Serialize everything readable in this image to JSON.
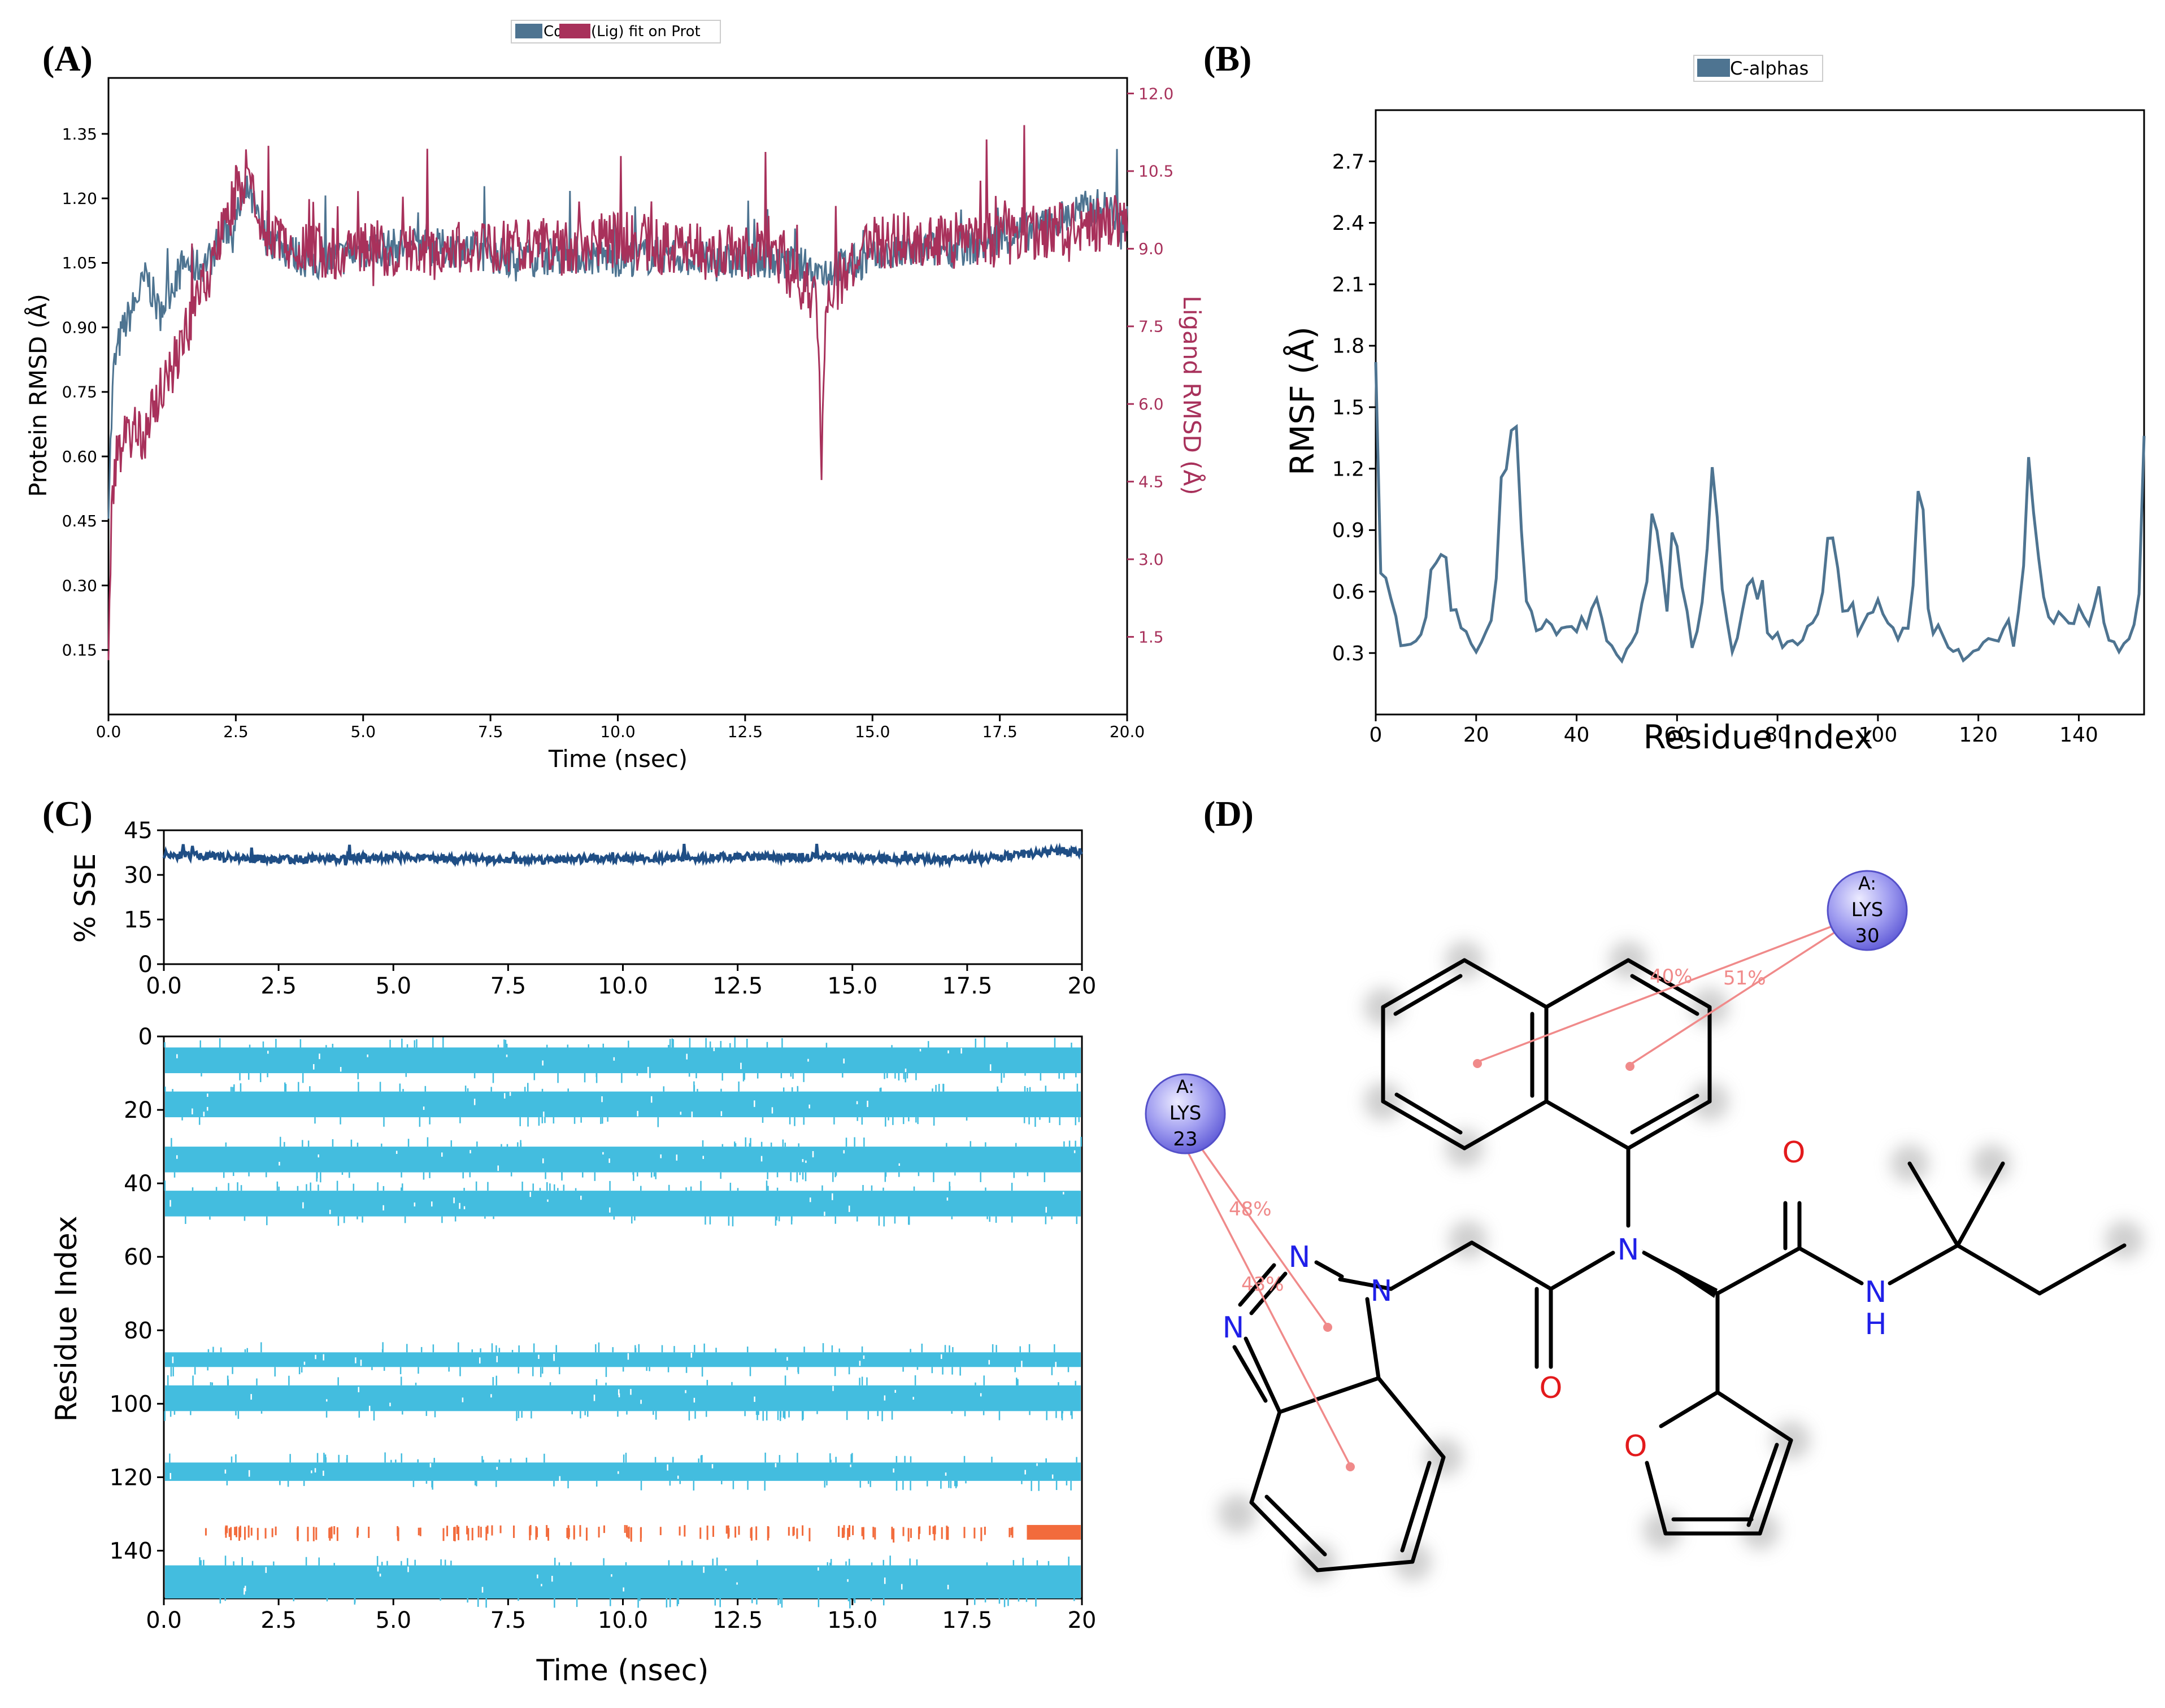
{
  "panel_labels": [
    "(A)",
    "(B)",
    "(C)",
    "(D)"
  ],
  "chart_data": [
    {
      "id": "A",
      "type": "line",
      "legend_labels": [
        "Cα",
        "(Lig) fit on Prot"
      ],
      "legend_placement": "top-center",
      "xlabel": "Time (nsec)",
      "ylabel_left": "Protein RMSD (Å)",
      "ylabel_right": "Ligand RMSD (Å)",
      "xlim": [
        0,
        20
      ],
      "ylim_left": [
        0,
        1.48
      ],
      "ylim_right": [
        0,
        12.3
      ],
      "x_ticks": [
        "0.0",
        "2.5",
        "5.0",
        "7.5",
        "10.0",
        "12.5",
        "15.0",
        "17.5",
        "20.0"
      ],
      "y_left_ticks": [
        "0.15",
        "0.30",
        "0.45",
        "0.60",
        "0.75",
        "0.90",
        "1.05",
        "1.20",
        "1.35"
      ],
      "y_right_ticks": [
        "1.5",
        "3.0",
        "4.5",
        "6.0",
        "7.5",
        "9.0",
        "10.5",
        "12.0"
      ],
      "colors": {
        "protein": "#4e7491",
        "ligand": "#a8315b"
      },
      "series": [
        {
          "axis": "left",
          "x": [
            0.0,
            0.1,
            0.2,
            0.3,
            0.5,
            0.75,
            1.0,
            1.25,
            1.5,
            1.75,
            2.0,
            2.25,
            2.5,
            2.75,
            3.0,
            3.5,
            4.0,
            4.5,
            5.0,
            6.0,
            7.0,
            8.0,
            9.0,
            10.0,
            11.0,
            12.0,
            13.0,
            14.0,
            15.0,
            16.0,
            17.0,
            18.0,
            18.5,
            19.0,
            19.5,
            20.0
          ],
          "values": [
            0.5,
            0.8,
            0.86,
            0.9,
            0.95,
            1.02,
            0.93,
            1.0,
            1.05,
            1.04,
            1.06,
            1.12,
            1.15,
            1.22,
            1.12,
            1.08,
            1.05,
            1.06,
            1.08,
            1.09,
            1.08,
            1.06,
            1.07,
            1.06,
            1.07,
            1.05,
            1.06,
            1.03,
            1.06,
            1.08,
            1.09,
            1.12,
            1.14,
            1.17,
            1.18,
            1.15
          ],
          "noise": 0.045
        },
        {
          "axis": "right",
          "x": [
            0.0,
            0.05,
            0.15,
            0.3,
            0.5,
            0.75,
            1.0,
            1.25,
            1.5,
            1.75,
            2.0,
            2.25,
            2.5,
            2.75,
            3.0,
            3.5,
            4.0,
            4.5,
            5.0,
            6.0,
            7.0,
            8.0,
            9.0,
            10.0,
            11.0,
            12.0,
            13.0,
            13.9,
            14.0,
            14.1,
            14.5,
            15.0,
            16.0,
            17.0,
            18.0,
            19.0,
            20.0
          ],
          "values": [
            1.6,
            3.5,
            5.1,
            5.3,
            5.6,
            5.4,
            6.2,
            6.7,
            7.3,
            8.0,
            8.5,
            9.3,
            10.1,
            10.4,
            9.6,
            9.1,
            9.0,
            8.9,
            9.1,
            8.9,
            9.0,
            9.1,
            9.0,
            9.2,
            9.0,
            8.9,
            9.0,
            8.0,
            5.0,
            8.0,
            8.6,
            9.1,
            9.2,
            9.1,
            9.3,
            9.4,
            9.6
          ],
          "noise": 0.55
        }
      ]
    },
    {
      "id": "B",
      "type": "line",
      "legend_labels": [
        "C-alphas"
      ],
      "legend_placement": "top-center",
      "xlabel": "Residue Index",
      "ylabel": "RMSF (Å)",
      "xlim": [
        0,
        153
      ],
      "ylim": [
        0,
        2.95
      ],
      "x_ticks": [
        "0",
        "20",
        "40",
        "60",
        "80",
        "100",
        "120",
        "140"
      ],
      "y_ticks": [
        "0.3",
        "0.6",
        "0.9",
        "1.2",
        "1.5",
        "1.8",
        "2.1",
        "2.4",
        "2.7"
      ],
      "colors": {
        "line": "#4e7491"
      },
      "x": [
        0,
        1,
        2,
        3,
        5,
        7,
        9,
        10,
        11,
        12,
        13,
        14,
        15,
        16,
        17,
        18,
        20,
        22,
        23,
        24,
        25,
        26,
        27,
        28,
        29,
        30,
        32,
        34,
        36,
        38,
        40,
        41,
        42,
        44,
        46,
        48,
        49,
        50,
        52,
        53,
        54,
        55,
        56,
        57,
        58,
        59,
        60,
        61,
        62,
        63,
        64,
        65,
        66,
        67,
        68,
        69,
        70,
        71,
        72,
        73,
        74,
        75,
        76,
        77,
        78,
        79,
        80,
        81,
        82,
        84,
        86,
        88,
        89,
        90,
        91,
        92,
        93,
        94,
        95,
        96,
        98,
        100,
        101,
        102,
        104,
        106,
        107,
        108,
        109,
        110,
        111,
        112,
        114,
        116,
        118,
        120,
        122,
        124,
        126,
        127,
        128,
        129,
        130,
        131,
        132,
        133,
        134,
        135,
        136,
        138,
        140,
        142,
        144,
        146,
        148,
        150,
        151,
        152,
        153
      ],
      "values": [
        1.75,
        0.68,
        0.65,
        0.58,
        0.36,
        0.35,
        0.38,
        0.45,
        0.7,
        0.76,
        0.8,
        0.78,
        0.5,
        0.52,
        0.45,
        0.38,
        0.33,
        0.38,
        0.45,
        0.68,
        1.15,
        1.2,
        1.4,
        1.43,
        0.9,
        0.55,
        0.42,
        0.45,
        0.41,
        0.4,
        0.42,
        0.45,
        0.42,
        0.58,
        0.38,
        0.3,
        0.28,
        0.3,
        0.42,
        0.55,
        0.63,
        0.96,
        0.9,
        0.72,
        0.5,
        0.9,
        0.82,
        0.62,
        0.5,
        0.32,
        0.38,
        0.55,
        0.82,
        1.21,
        0.95,
        0.62,
        0.45,
        0.28,
        0.38,
        0.5,
        0.62,
        0.67,
        0.55,
        0.67,
        0.38,
        0.35,
        0.42,
        0.32,
        0.38,
        0.35,
        0.42,
        0.46,
        0.6,
        0.88,
        0.86,
        0.7,
        0.5,
        0.48,
        0.56,
        0.42,
        0.5,
        0.55,
        0.5,
        0.45,
        0.35,
        0.45,
        0.65,
        1.08,
        1.0,
        0.5,
        0.38,
        0.42,
        0.35,
        0.3,
        0.28,
        0.32,
        0.4,
        0.38,
        0.45,
        0.35,
        0.48,
        0.72,
        1.26,
        1.0,
        0.75,
        0.58,
        0.45,
        0.42,
        0.5,
        0.42,
        0.5,
        0.42,
        0.6,
        0.35,
        0.32,
        0.38,
        0.42,
        0.58,
        1.33
      ],
      "noise": 0.03
    },
    {
      "id": "C1",
      "type": "line",
      "ylabel": "% SSE",
      "xlim": [
        0,
        20
      ],
      "ylim": [
        0,
        45
      ],
      "x_ticks": [
        "0.0",
        "2.5",
        "5.0",
        "7.5",
        "10.0",
        "12.5",
        "15.0",
        "17.5",
        "20"
      ],
      "y_ticks": [
        "0",
        "15",
        "30",
        "45"
      ],
      "colors": {
        "line": "#1f4e85"
      },
      "x": [
        0.0,
        2.5,
        5.0,
        7.5,
        10.0,
        12.5,
        15.0,
        17.5,
        18.8,
        19.5,
        20.0
      ],
      "values": [
        37,
        35,
        36,
        35,
        35.5,
        36,
        36,
        35,
        37,
        38,
        38
      ],
      "noise": 1.4
    },
    {
      "id": "C2",
      "type": "heatmap",
      "xlabel": "Time (nsec)",
      "ylabel": "Residue Index",
      "xlim": [
        0,
        20
      ],
      "ylim": [
        0,
        153
      ],
      "x_ticks": [
        "0.0",
        "2.5",
        "5.0",
        "7.5",
        "10.0",
        "12.5",
        "15.0",
        "17.5",
        "20"
      ],
      "y_ticks": [
        "0",
        "20",
        "40",
        "60",
        "80",
        "100",
        "120",
        "140"
      ],
      "colors": {
        "helix": "#43bddf",
        "strand": "#f26b3c"
      },
      "bands": [
        {
          "type": "helix",
          "start": 3,
          "end": 10
        },
        {
          "type": "helix",
          "start": 15,
          "end": 22
        },
        {
          "type": "helix",
          "start": 30,
          "end": 37
        },
        {
          "type": "helix",
          "start": 42,
          "end": 49
        },
        {
          "type": "helix",
          "start": 86,
          "end": 90
        },
        {
          "type": "helix",
          "start": 95,
          "end": 102
        },
        {
          "type": "helix",
          "start": 116,
          "end": 121
        },
        {
          "type": "helix",
          "start": 144,
          "end": 153
        }
      ],
      "sparse": [
        {
          "type": "strand",
          "start": 133,
          "end": 137
        }
      ]
    }
  ],
  "molecule": {
    "atoms": [
      "N",
      "N",
      "N",
      "N",
      "N",
      "H",
      "O",
      "O",
      "O"
    ],
    "interactions": [
      {
        "residue_chain": "A:",
        "residue_name": "LYS",
        "residue_number": "30",
        "percents": [
          "40%",
          "51%"
        ]
      },
      {
        "residue_chain": "A:",
        "residue_name": "LYS",
        "residue_number": "23",
        "percents": [
          "48%",
          "43%"
        ]
      }
    ],
    "colors": {
      "nitrogen": "#1f1fe8",
      "oxygen": "#e31a1c",
      "interaction": "#f08a8a",
      "residue": "#7b7be6"
    }
  }
}
